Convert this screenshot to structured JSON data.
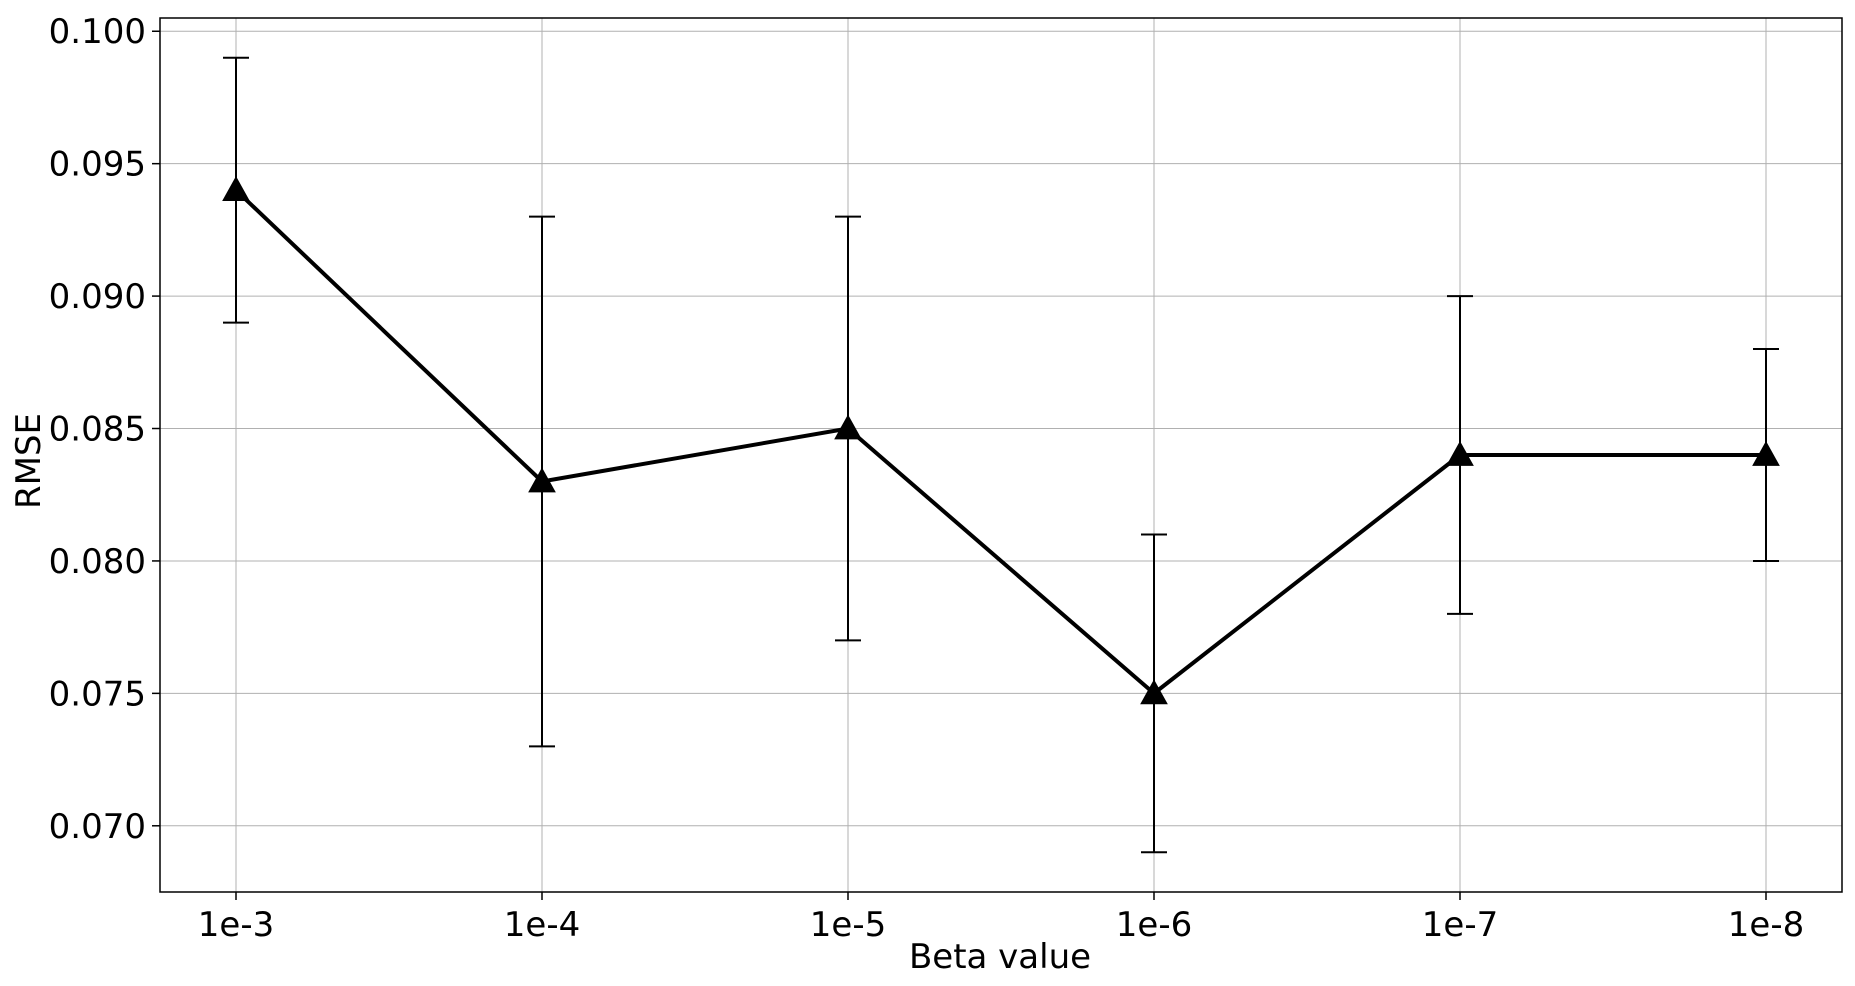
{
  "chart_data": {
    "type": "line",
    "title": "",
    "xlabel": "Beta value",
    "ylabel": "RMSE",
    "categories": [
      "1e-3",
      "1e-4",
      "1e-5",
      "1e-6",
      "1e-7",
      "1e-8"
    ],
    "series": [
      {
        "values": [
          0.094,
          0.083,
          0.085,
          0.075,
          0.084,
          0.084
        ],
        "error_low": [
          0.089,
          0.073,
          0.077,
          0.069,
          0.078,
          0.08
        ],
        "error_high": [
          0.099,
          0.093,
          0.093,
          0.081,
          0.09,
          0.088
        ],
        "color": "#000000",
        "marker": "triangle-up"
      }
    ],
    "ylim": [
      0.0675,
      0.1005
    ],
    "yticks": [
      "0.070",
      "0.075",
      "0.080",
      "0.085",
      "0.090",
      "0.095",
      "0.100"
    ],
    "grid": true,
    "legend": "none"
  }
}
